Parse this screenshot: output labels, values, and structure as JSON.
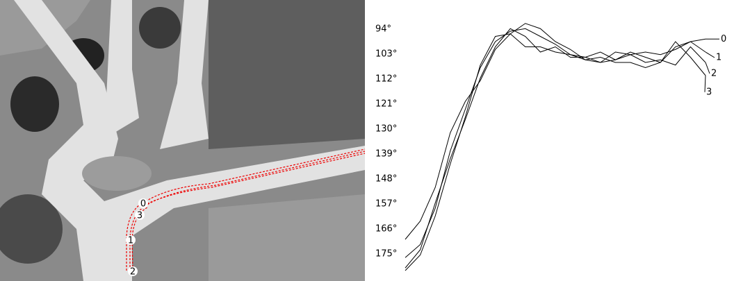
{
  "image": {
    "angle_labels": [
      "94°",
      "103°",
      "112°",
      "121°",
      "130°",
      "139°",
      "148°",
      "157°",
      "166°",
      "175°"
    ],
    "path_labels": [
      "0",
      "3",
      "1",
      "2"
    ]
  },
  "chart_data": {
    "type": "line",
    "x": [
      0,
      1,
      2,
      3,
      4,
      5,
      6,
      7,
      8,
      9,
      10,
      11,
      12,
      13,
      14,
      15,
      16,
      17,
      18,
      19,
      20
    ],
    "xlim": [
      0,
      20
    ],
    "ylim": [
      0,
      100
    ],
    "series": [
      {
        "name": "0",
        "color": "#000000",
        "values": [
          16,
          23,
          36,
          57,
          69,
          77,
          89,
          95,
          99,
          97,
          92,
          89,
          85,
          84,
          85,
          87,
          88,
          87,
          89,
          92,
          93
        ]
      },
      {
        "name": "1",
        "color": "#000000",
        "values": [
          9,
          14,
          28,
          50,
          66,
          82,
          92,
          96,
          97,
          94,
          91,
          87,
          86,
          88,
          85,
          88,
          86,
          84,
          90,
          92,
          88
        ]
      },
      {
        "name": "2",
        "color": "#000000",
        "values": [
          5,
          12,
          30,
          47,
          62,
          78,
          90,
          97,
          94,
          88,
          90,
          86,
          86,
          84,
          88,
          87,
          84,
          85,
          83,
          90,
          84
        ]
      },
      {
        "name": "3",
        "color": "#000000",
        "values": [
          4,
          10,
          25,
          45,
          63,
          83,
          94,
          95,
          90,
          90,
          88,
          87,
          85,
          86,
          84,
          84,
          82,
          84,
          92,
          86,
          79
        ]
      }
    ]
  }
}
